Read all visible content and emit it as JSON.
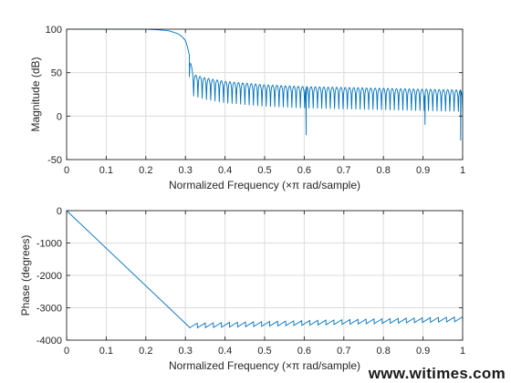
{
  "watermark": "www.witimes.com",
  "chart_data": [
    {
      "type": "line",
      "xlabel": "Normalized Frequency  (×π rad/sample)",
      "ylabel": "Magnitude (dB)",
      "xlim": [
        0,
        1
      ],
      "ylim": [
        -50,
        100
      ],
      "xticks": [
        0,
        0.1,
        0.2,
        0.3,
        0.4,
        0.5,
        0.6,
        0.7,
        0.8,
        0.9,
        1
      ],
      "yticks": [
        -50,
        0,
        50,
        100
      ],
      "grid": true,
      "color": "#0072BD",
      "series": [
        {
          "x": [
            0,
            0.05,
            0.1,
            0.15,
            0.2,
            0.24,
            0.26,
            0.28,
            0.29,
            0.3,
            0.305,
            0.31,
            0.315,
            0.32,
            0.35,
            0.4,
            0.5,
            0.6,
            0.7,
            0.8,
            0.9,
            1.0
          ],
          "values": [
            100,
            100,
            100,
            100,
            100,
            99,
            98,
            95,
            92,
            87,
            80,
            70,
            58,
            48,
            44,
            40,
            36,
            34,
            33,
            32,
            31,
            30
          ],
          "ripple": {
            "from": 0.31,
            "to": 1.0,
            "lobes": 64,
            "dip_depth_db": 25,
            "deep_nulls": [
              {
                "x": 0.605,
                "y": -22
              },
              {
                "x": 0.905,
                "y": -10
              },
              {
                "x": 0.995,
                "y": -28
              }
            ]
          }
        }
      ]
    },
    {
      "type": "line",
      "xlabel": "Normalized Frequency  (×π rad/sample)",
      "ylabel": "Phase (degrees)",
      "xlim": [
        0,
        1
      ],
      "ylim": [
        -4000,
        0
      ],
      "xticks": [
        0,
        0.1,
        0.2,
        0.3,
        0.4,
        0.5,
        0.6,
        0.7,
        0.8,
        0.9,
        1
      ],
      "yticks": [
        -4000,
        -3000,
        -2000,
        -1000,
        0
      ],
      "grid": true,
      "color": "#0072BD",
      "series": [
        {
          "x": [
            0,
            0.31
          ],
          "values": [
            0,
            -3600
          ],
          "sawtooth": {
            "from": 0.31,
            "to": 1.0,
            "start": -3620,
            "end": -3420,
            "amplitude": 160,
            "teeth": 34
          }
        }
      ]
    }
  ]
}
